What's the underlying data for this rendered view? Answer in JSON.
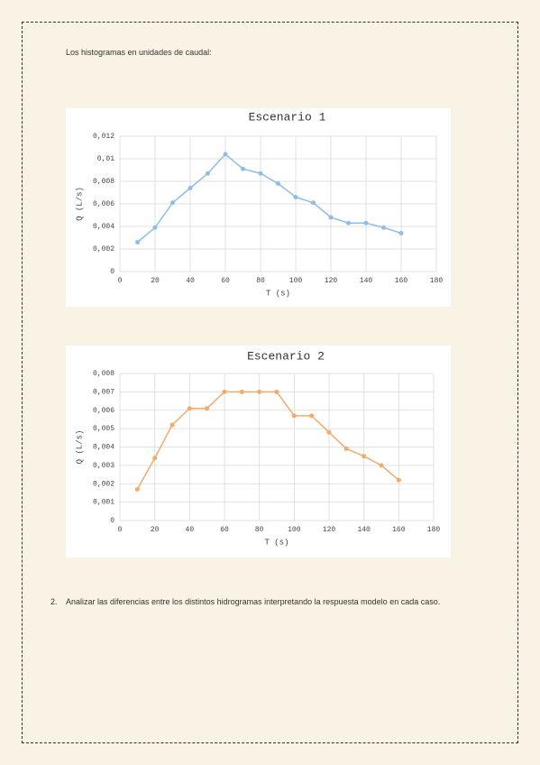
{
  "document": {
    "intro": "Los histogramas en unidades de caudal:",
    "item_number": "2.",
    "item_text": "Analizar las diferencias entre los distintos hidrogramas interpretando la respuesta modelo en cada caso."
  },
  "chart_data": [
    {
      "type": "line",
      "title": "Escenario 1",
      "xlabel": "T (s)",
      "ylabel": "Q (L/s)",
      "color": "#8fbde6",
      "x": [
        10,
        20,
        30,
        40,
        50,
        60,
        70,
        80,
        90,
        100,
        110,
        120,
        130,
        140,
        150,
        160
      ],
      "values": [
        0.0026,
        0.0039,
        0.0061,
        0.0074,
        0.0087,
        0.0104,
        0.0091,
        0.0087,
        0.0078,
        0.0066,
        0.0061,
        0.0048,
        0.0043,
        0.0043,
        0.0039,
        0.0034
      ],
      "xlim": [
        0,
        180
      ],
      "xticks": [
        0,
        20,
        40,
        60,
        80,
        100,
        120,
        140,
        160,
        180
      ],
      "ylim": [
        0,
        0.012
      ],
      "yticks": [
        0,
        {
          "value": 0.002,
          "label": "0,002"
        },
        {
          "value": 0.004,
          "label": "0,004"
        },
        {
          "value": 0.006,
          "label": "0,006"
        },
        {
          "value": 0.008,
          "label": "0,008"
        },
        {
          "value": 0.01,
          "label": "0,01"
        },
        {
          "value": 0.012,
          "label": "0,012"
        }
      ],
      "grid": true
    },
    {
      "type": "line",
      "title": "Escenario 2",
      "xlabel": "T (s)",
      "ylabel": "Q (L/s)",
      "color": "#f5a96a",
      "x": [
        10,
        20,
        30,
        40,
        50,
        60,
        70,
        80,
        90,
        100,
        110,
        120,
        130,
        140,
        150,
        160
      ],
      "values": [
        0.0017,
        0.0034,
        0.0052,
        0.0061,
        0.0061,
        0.007,
        0.007,
        0.007,
        0.007,
        0.0057,
        0.0057,
        0.0048,
        0.0039,
        0.0035,
        0.003,
        0.0022
      ],
      "xlim": [
        0,
        180
      ],
      "xticks": [
        0,
        20,
        40,
        60,
        80,
        100,
        120,
        140,
        160,
        180
      ],
      "ylim": [
        0,
        0.008
      ],
      "yticks": [
        0,
        {
          "value": 0.001,
          "label": "0,001"
        },
        {
          "value": 0.002,
          "label": "0,002"
        },
        {
          "value": 0.003,
          "label": "0,003"
        },
        {
          "value": 0.004,
          "label": "0,004"
        },
        {
          "value": 0.005,
          "label": "0,005"
        },
        {
          "value": 0.006,
          "label": "0,006"
        },
        {
          "value": 0.007,
          "label": "0,007"
        },
        {
          "value": 0.008,
          "label": "0,008"
        }
      ],
      "grid": true
    }
  ]
}
